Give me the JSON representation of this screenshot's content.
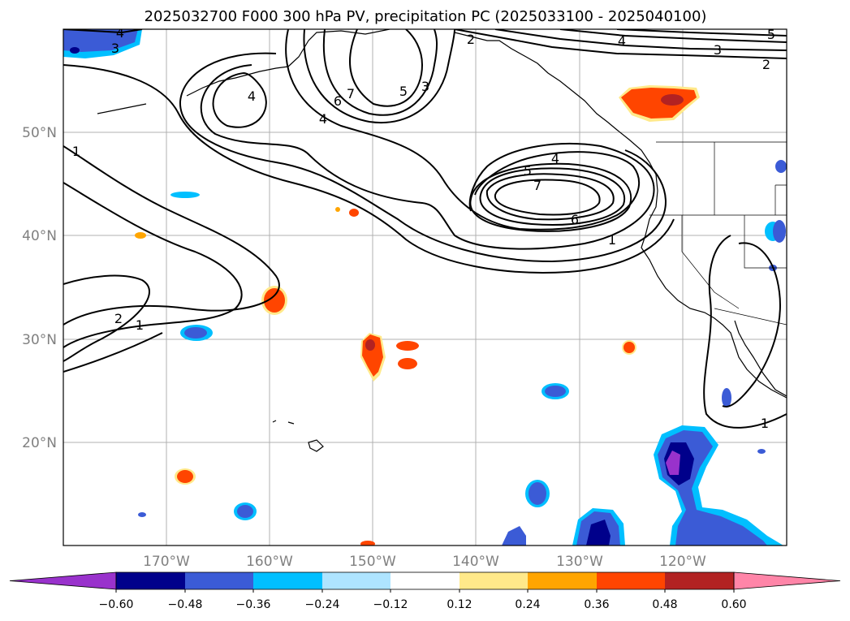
{
  "title": "2025032700 F000 300 hPa PV, precipitation PC (2025033100 - 2025040100)",
  "map": {
    "lon_labels": [
      "170°W",
      "160°W",
      "150°W",
      "140°W",
      "130°W",
      "120°W"
    ],
    "lat_labels": [
      "50°N",
      "40°N",
      "30°N",
      "20°N"
    ]
  },
  "colorbar": {
    "ticks": [
      "−0.60",
      "−0.48",
      "−0.36",
      "−0.24",
      "−0.12",
      "0.12",
      "0.24",
      "0.36",
      "0.48",
      "0.60"
    ],
    "colors": [
      "#9932cc",
      "#00008b",
      "#3b5bd6",
      "#00bfff",
      "#aee4ff",
      "#ffffff",
      "#ffe98a",
      "#ffa500",
      "#ff4500",
      "#b22222",
      "#ff85a8"
    ]
  },
  "contour_labels": [
    "4",
    "3",
    "2",
    "4",
    "3",
    "2",
    "5",
    "4",
    "7",
    "6",
    "5",
    "3",
    "4",
    "1",
    "4",
    "5",
    "7",
    "6",
    "1",
    "2",
    "1",
    "1"
  ]
}
